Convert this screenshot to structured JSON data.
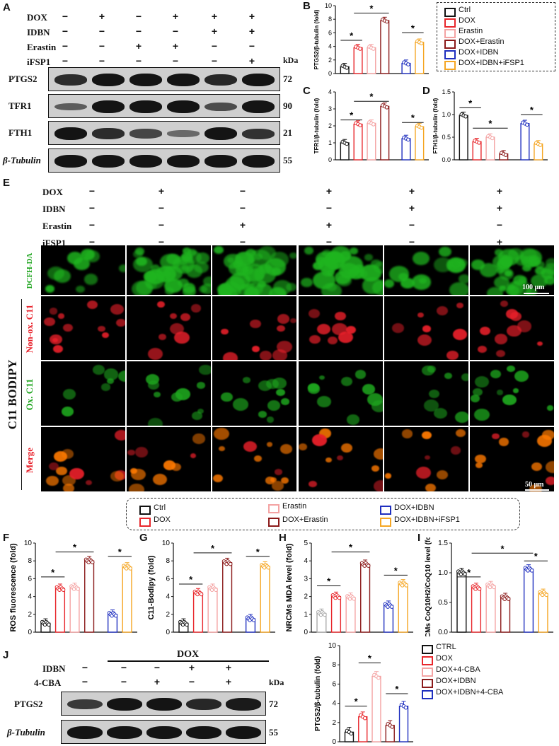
{
  "panel_labels": [
    "A",
    "B",
    "C",
    "D",
    "E",
    "F",
    "G",
    "H",
    "I",
    "J"
  ],
  "panelA": {
    "row_labels": [
      "DOX",
      "IDBN",
      "Erastin",
      "iFSP1"
    ],
    "rows": [
      [
        "−",
        "+",
        "−",
        "+",
        "+",
        "+"
      ],
      [
        "−",
        "−",
        "−",
        "−",
        "+",
        "+"
      ],
      [
        "−",
        "−",
        "+",
        "+",
        "−",
        "−"
      ],
      [
        "−",
        "−",
        "−",
        "−",
        "−",
        "+"
      ]
    ],
    "kda_label": "kDa",
    "blots": [
      {
        "name": "PTGS2",
        "kda": "72"
      },
      {
        "name": "TFR1",
        "kda": "90"
      },
      {
        "name": "FTH1",
        "kda": "21"
      },
      {
        "name": "β-Tubulin",
        "kda": "55"
      }
    ]
  },
  "legend_top": [
    "Ctrl",
    "DOX",
    "Erastin",
    "DOX+Erastin",
    "DOX+IDBN",
    "DOX+IDBN+iFSP1"
  ],
  "colors": {
    "ctrl": "#111111",
    "dox": "#e8262b",
    "erastin": "#f4a3a3",
    "dox_erastin": "#8b1a1a",
    "dox_idbn": "#1f2fbf",
    "dox_idbn_ifsp1": "#f5a623",
    "dox_4cba": "#f4a3a3",
    "dox_idbn_j": "#8b1a1a",
    "grey": "#aaaaaa"
  },
  "panelE": {
    "row_labels": [
      "DOX",
      "IDBN",
      "Erastin",
      "iFSP1"
    ],
    "rows": [
      [
        "−",
        "+",
        "−",
        "+",
        "+",
        "+"
      ],
      [
        "−",
        "−",
        "−",
        "−",
        "+",
        "+"
      ],
      [
        "−",
        "−",
        "+",
        "+",
        "−",
        "−"
      ],
      [
        "−",
        "−",
        "−",
        "−",
        "−",
        "+"
      ]
    ],
    "stain_labels": [
      "DCFH-DA",
      "Non-ox. C11",
      "Ox. C11",
      "Merge"
    ],
    "group_label": "C11 BODIPY",
    "scale_top": "100 μm",
    "scale_bottom": "50 μm"
  },
  "legend_mid": [
    "Ctrl",
    "DOX",
    "Erastin",
    "DOX+Erastin",
    "DOX+IDBN",
    "DOX+IDBN+iFSP1"
  ],
  "chart_data": [
    {
      "panel": "B",
      "type": "bar",
      "ylabel": "PTGS2/β-tubulin (fold)",
      "ylim": [
        0,
        10
      ],
      "yticks": [
        0,
        2,
        4,
        6,
        8,
        10
      ],
      "series": [
        {
          "values": [
            1.0,
            3.8,
            3.8,
            7.8,
            1.5,
            4.6
          ]
        }
      ]
    },
    {
      "panel": "C",
      "type": "bar",
      "ylabel": "TFR1/β-tubulin (fold)",
      "ylim": [
        0,
        4
      ],
      "yticks": [
        0,
        1,
        2,
        3,
        4
      ],
      "series": [
        {
          "values": [
            1.0,
            2.1,
            2.15,
            3.15,
            1.25,
            1.95
          ]
        }
      ]
    },
    {
      "panel": "D",
      "type": "bar",
      "ylabel": "FTH1/β-tubulin (fold)",
      "ylim": [
        0,
        1.5
      ],
      "yticks": [
        0.0,
        0.5,
        1.0,
        1.5
      ],
      "series": [
        {
          "values": [
            0.98,
            0.4,
            0.5,
            0.13,
            0.8,
            0.35
          ]
        }
      ]
    },
    {
      "panel": "F",
      "type": "bar",
      "ylabel": "ROS fluorescence (fold)",
      "ylim": [
        0,
        10
      ],
      "yticks": [
        0,
        2,
        4,
        6,
        8,
        10
      ],
      "series": [
        {
          "values": [
            1.0,
            4.9,
            5.0,
            8.0,
            2.0,
            7.3
          ]
        }
      ]
    },
    {
      "panel": "G",
      "type": "bar",
      "ylabel": "C11-Bodipy (fold)",
      "ylim": [
        0,
        10
      ],
      "yticks": [
        0,
        2,
        4,
        6,
        8,
        10
      ],
      "series": [
        {
          "values": [
            1.0,
            4.4,
            4.9,
            7.8,
            1.5,
            7.4
          ]
        }
      ]
    },
    {
      "panel": "H",
      "type": "bar",
      "ylabel": "NRCMs MDA level (fold)",
      "ylim": [
        0,
        5
      ],
      "yticks": [
        0,
        1,
        2,
        3,
        4,
        5
      ],
      "series": [
        {
          "values": [
            1.05,
            2.0,
            1.95,
            3.8,
            1.5,
            2.7
          ]
        }
      ]
    },
    {
      "panel": "I",
      "type": "bar",
      "ylabel": "NRCMs CoQ10H2/CoQ10 level (fold)",
      "ylim": [
        0,
        1.5
      ],
      "yticks": [
        0.0,
        0.5,
        1.0,
        1.5
      ],
      "series": [
        {
          "values": [
            1.0,
            0.75,
            0.78,
            0.58,
            1.06,
            0.65
          ]
        }
      ]
    },
    {
      "panel": "J",
      "type": "bar",
      "ylabel": "PTGS2/β-tubulin (fold)",
      "ylim": [
        0,
        10
      ],
      "yticks": [
        0,
        2,
        4,
        6,
        8,
        10
      ],
      "series": [
        {
          "values": [
            1.0,
            2.6,
            6.8,
            1.7,
            3.7
          ]
        }
      ]
    }
  ],
  "panelJ": {
    "dox_label": "DOX",
    "row_labels": [
      "IDBN",
      "4-CBA"
    ],
    "rows": [
      [
        "−",
        "−",
        "−",
        "+",
        "+"
      ],
      [
        "−",
        "−",
        "+",
        "−",
        "+"
      ]
    ],
    "kda_label": "kDa",
    "blots": [
      {
        "name": "PTGS2",
        "kda": "72"
      },
      {
        "name": "β-Tubulin",
        "kda": "55"
      }
    ]
  },
  "legend_j": [
    "CTRL",
    "DOX",
    "DOX+4-CBA",
    "DOX+IDBN",
    "DOX+IDBN+4-CBA"
  ],
  "star": "*"
}
